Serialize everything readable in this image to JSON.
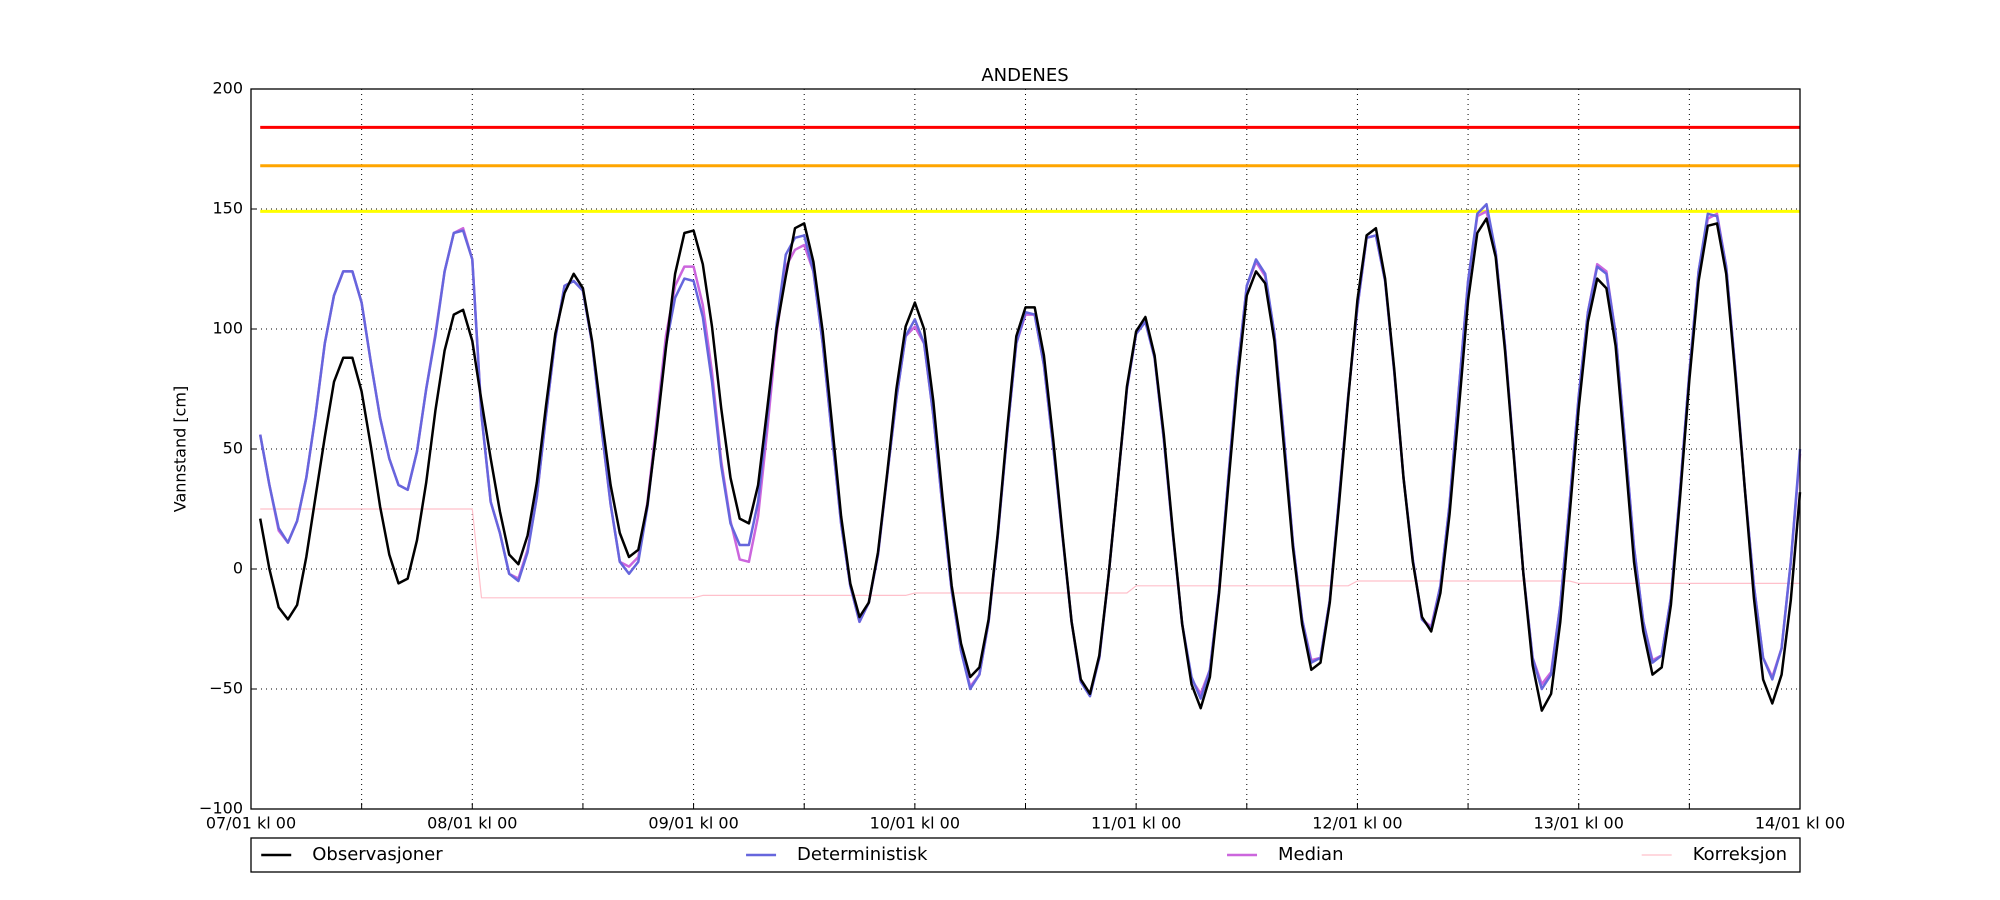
{
  "chart_data": {
    "type": "line",
    "title": "ANDENES",
    "y_label": "Vannstand [cm]",
    "x": [
      1,
      2,
      3,
      4,
      5,
      6,
      7,
      8,
      9,
      10,
      11,
      12,
      13,
      14,
      15,
      16,
      17,
      18,
      19,
      20,
      21,
      22,
      23,
      24,
      25,
      26,
      27,
      28,
      29,
      30,
      31,
      32,
      33,
      34,
      35,
      36,
      37,
      38,
      39,
      40,
      41,
      42,
      43,
      44,
      45,
      46,
      47,
      48,
      49,
      50,
      51,
      52,
      53,
      54,
      55,
      56,
      57,
      58,
      59,
      60,
      61,
      62,
      63,
      64,
      65,
      66,
      67,
      68,
      69,
      70,
      71,
      72,
      73,
      74,
      75,
      76,
      77,
      78,
      79,
      80,
      81,
      82,
      83,
      84,
      85,
      86,
      87,
      88,
      89,
      90,
      91,
      92,
      93,
      94,
      95,
      96,
      97,
      98,
      99,
      100,
      101,
      102,
      103,
      104,
      105,
      106,
      107,
      108,
      109,
      110,
      111,
      112,
      113,
      114,
      115,
      116,
      117,
      118,
      119,
      120,
      121,
      122,
      123,
      124,
      125,
      126,
      127,
      128,
      129,
      130,
      131,
      132,
      133,
      134,
      135,
      136,
      137,
      138,
      139,
      140,
      141,
      142,
      143,
      144,
      145,
      146,
      147,
      148,
      149,
      150,
      151,
      152,
      153,
      154,
      155,
      156,
      157,
      158,
      159,
      160,
      161,
      162,
      163,
      164,
      165,
      166,
      167,
      168
    ],
    "series": [
      {
        "name": "Observasjoner",
        "color": "#000000",
        "values": [
          21,
          0,
          -16,
          -21,
          -15,
          5,
          30,
          55,
          78,
          88,
          88,
          74,
          51,
          26,
          6,
          -6,
          -4,
          12,
          36,
          66,
          91,
          106,
          108,
          95,
          70,
          46,
          24,
          6,
          2,
          14,
          36,
          68,
          98,
          115,
          123,
          117,
          95,
          64,
          35,
          15,
          5,
          8,
          27,
          58,
          92,
          123,
          140,
          141,
          127,
          101,
          67,
          38,
          21,
          19,
          35,
          67,
          100,
          122,
          142,
          144,
          128,
          99,
          61,
          22,
          -6,
          -20,
          -14,
          7,
          40,
          75,
          101,
          111,
          100,
          70,
          30,
          -7,
          -31,
          -45,
          -41,
          -21,
          15,
          58,
          97,
          109,
          109,
          89,
          54,
          15,
          -22,
          -46,
          -52,
          -36,
          -3,
          36,
          76,
          99,
          105,
          89,
          56,
          15,
          -23,
          -48,
          -58,
          -45,
          -10,
          35,
          79,
          114,
          124,
          119,
          95,
          52,
          9,
          -23,
          -42,
          -39,
          -14,
          27,
          71,
          112,
          139,
          142,
          121,
          83,
          38,
          3,
          -20,
          -26,
          -10,
          23,
          67,
          112,
          140,
          146,
          130,
          91,
          45,
          -2,
          -40,
          -59,
          -52,
          -22,
          22,
          67,
          103,
          121,
          117,
          93,
          49,
          3,
          -26,
          -44,
          -41,
          -15,
          30,
          79,
          120,
          143,
          144,
          123,
          80,
          34,
          -12,
          -46,
          -56,
          -44,
          -13,
          32
        ]
      },
      {
        "name": "Deterministisk",
        "color": "#6666dd",
        "values": [
          56,
          35,
          17,
          11,
          20,
          38,
          64,
          94,
          114,
          124,
          124,
          111,
          86,
          63,
          46,
          35,
          33,
          49,
          75,
          97,
          124,
          140,
          141,
          129,
          64,
          28,
          15,
          -2,
          -5,
          7,
          30,
          64,
          96,
          118,
          120,
          116,
          94,
          59,
          27,
          3,
          -2,
          3,
          26,
          59,
          93,
          113,
          121,
          120,
          105,
          78,
          43,
          19,
          10,
          10,
          28,
          63,
          102,
          131,
          138,
          139,
          124,
          94,
          56,
          19,
          -7,
          -22,
          -14,
          6,
          39,
          71,
          97,
          104,
          94,
          64,
          26,
          -9,
          -34,
          -50,
          -44,
          -22,
          14,
          56,
          94,
          107,
          106,
          85,
          51,
          14,
          -22,
          -47,
          -53,
          -37,
          -3,
          36,
          75,
          98,
          103,
          88,
          54,
          14,
          -23,
          -45,
          -54,
          -42,
          -9,
          38,
          83,
          118,
          129,
          123,
          98,
          56,
          11,
          -21,
          -39,
          -37,
          -13,
          29,
          72,
          109,
          138,
          139,
          120,
          82,
          38,
          4,
          -21,
          -25,
          -7,
          27,
          75,
          120,
          148,
          152,
          132,
          93,
          46,
          -2,
          -37,
          -50,
          -44,
          -15,
          27,
          72,
          107,
          126,
          123,
          98,
          54,
          9,
          -22,
          -39,
          -36,
          -12,
          33,
          82,
          124,
          148,
          147,
          126,
          82,
          34,
          -7,
          -37,
          -46,
          -33,
          3,
          50
        ]
      },
      {
        "name": "Median",
        "color": "#cc66dd",
        "values": [
          56,
          35,
          16,
          11,
          20,
          38,
          64,
          94,
          114,
          124,
          124,
          111,
          86,
          63,
          46,
          35,
          33,
          49,
          75,
          98,
          124,
          140,
          142,
          129,
          64,
          28,
          15,
          -2,
          -4,
          8,
          30,
          64,
          96,
          118,
          120,
          116,
          94,
          59,
          27,
          3,
          1,
          5,
          28,
          62,
          97,
          118,
          126,
          126,
          110,
          82,
          45,
          20,
          4,
          3,
          22,
          58,
          98,
          126,
          133,
          135,
          124,
          94,
          56,
          19,
          -7,
          -22,
          -14,
          6,
          39,
          71,
          97,
          101,
          94,
          64,
          26,
          -9,
          -34,
          -49,
          -44,
          -22,
          14,
          56,
          94,
          106,
          106,
          85,
          51,
          14,
          -22,
          -47,
          -52,
          -37,
          -3,
          36,
          75,
          98,
          103,
          88,
          54,
          14,
          -23,
          -46,
          -52,
          -42,
          -9,
          38,
          83,
          118,
          128,
          122,
          98,
          56,
          11,
          -21,
          -38,
          -37,
          -13,
          29,
          72,
          109,
          138,
          139,
          120,
          82,
          38,
          4,
          -21,
          -24,
          -7,
          27,
          75,
          120,
          147,
          149,
          132,
          93,
          46,
          -2,
          -37,
          -48,
          -43,
          -15,
          27,
          72,
          107,
          127,
          124,
          98,
          54,
          9,
          -22,
          -38,
          -36,
          -12,
          33,
          82,
          124,
          146,
          148,
          126,
          82,
          34,
          -7,
          -37,
          -45,
          -33,
          3,
          48
        ]
      },
      {
        "name": "Korreksjon",
        "color": "#ffc0cb",
        "values": [
          25,
          25,
          25,
          25,
          25,
          25,
          25,
          25,
          25,
          25,
          25,
          25,
          25,
          25,
          25,
          25,
          25,
          25,
          25,
          25,
          25,
          25,
          25,
          25,
          -12,
          -12,
          -12,
          -12,
          -12,
          -12,
          -12,
          -12,
          -12,
          -12,
          -12,
          -12,
          -12,
          -12,
          -12,
          -12,
          -12,
          -12,
          -12,
          -12,
          -12,
          -12,
          -12,
          -12,
          -11,
          -11,
          -11,
          -11,
          -11,
          -11,
          -11,
          -11,
          -11,
          -11,
          -11,
          -11,
          -11,
          -11,
          -11,
          -11,
          -11,
          -11,
          -11,
          -11,
          -11,
          -11,
          -11,
          -10,
          -10,
          -10,
          -10,
          -10,
          -10,
          -10,
          -10,
          -10,
          -10,
          -10,
          -10,
          -10,
          -10,
          -10,
          -10,
          -10,
          -10,
          -10,
          -10,
          -10,
          -10,
          -10,
          -10,
          -7,
          -7,
          -7,
          -7,
          -7,
          -7,
          -7,
          -7,
          -7,
          -7,
          -7,
          -7,
          -7,
          -7,
          -7,
          -7,
          -7,
          -7,
          -7,
          -7,
          -7,
          -7,
          -7,
          -7,
          -5,
          -5,
          -5,
          -5,
          -5,
          -5,
          -5,
          -5,
          -5,
          -5,
          -5,
          -5,
          -5,
          -5,
          -5,
          -5,
          -5,
          -5,
          -5,
          -5,
          -5,
          -5,
          -5,
          -5,
          -6,
          -6,
          -6,
          -6,
          -6,
          -6,
          -6,
          -6,
          -6,
          -6,
          -6,
          -6,
          -6,
          -6,
          -6,
          -6,
          -6,
          -6,
          -6,
          -6,
          -6,
          -6,
          -6,
          -6,
          -6
        ]
      }
    ],
    "reference_lines": [
      {
        "value": 184,
        "color": "#ff0000"
      },
      {
        "value": 168,
        "color": "#ffa500"
      },
      {
        "value": 149,
        "color": "#ffff00"
      }
    ],
    "xlim": [
      0,
      168
    ],
    "xticks": [
      {
        "value": 0,
        "label": "07/01 kl 00"
      },
      {
        "value": 24,
        "label": "08/01 kl 00"
      },
      {
        "value": 48,
        "label": "09/01 kl 00"
      },
      {
        "value": 72,
        "label": "10/01 kl 00"
      },
      {
        "value": 96,
        "label": "11/01 kl 00"
      },
      {
        "value": 120,
        "label": "12/01 kl 00"
      },
      {
        "value": 144,
        "label": "13/01 kl 00"
      },
      {
        "value": 168,
        "label": "14/01 kl 00"
      }
    ],
    "xminorticks": [
      12,
      36,
      60,
      84,
      108,
      132,
      156
    ],
    "ylim": [
      -100,
      200
    ],
    "yticks": [
      {
        "value": -100,
        "label": "−100"
      },
      {
        "value": -50,
        "label": "−50"
      },
      0,
      50,
      100,
      150,
      200
    ],
    "grid": true,
    "legend": "bottom"
  }
}
